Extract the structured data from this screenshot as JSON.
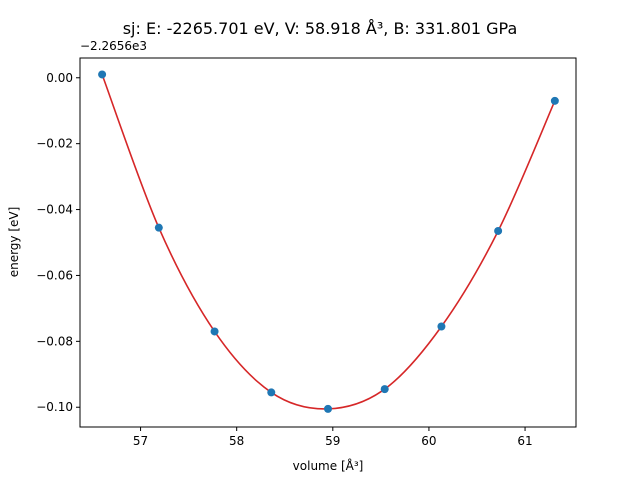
{
  "chart_data": {
    "type": "scatter",
    "title": "sj: E: -2265.701 eV, V: 58.918 Å³, B: 331.801 GPa",
    "xlabel": "volume [Å³]",
    "ylabel": "energy [eV]",
    "y_offset_label": "−2.2656e3",
    "xlim": [
      56.37,
      61.53
    ],
    "ylim": [
      -0.106,
      0.006
    ],
    "x_ticks": [
      57,
      58,
      59,
      60,
      61
    ],
    "x_tick_labels": [
      "57",
      "58",
      "59",
      "60",
      "61"
    ],
    "y_ticks": [
      0.0,
      -0.02,
      -0.04,
      -0.06,
      -0.08,
      -0.1
    ],
    "y_tick_labels": [
      "0.00",
      "−0.02",
      "−0.04",
      "−0.06",
      "−0.08",
      "−0.10"
    ],
    "grid": false,
    "series": [
      {
        "kind": "points",
        "color": "#1f77b4",
        "x": [
          56.6,
          57.19,
          57.77,
          58.36,
          58.95,
          59.54,
          60.13,
          60.72,
          61.31
        ],
        "y": [
          0.001,
          -0.0455,
          -0.077,
          -0.0955,
          -0.1005,
          -0.0945,
          -0.0755,
          -0.0465,
          -0.007
        ]
      },
      {
        "kind": "fit-curve",
        "color": "#d62728",
        "minimum": {
          "x": 58.918,
          "y": -0.1007
        },
        "x_range": [
          56.6,
          61.31
        ]
      }
    ]
  },
  "colors": {
    "points": "#1f77b4",
    "fit": "#d62728",
    "axes": "#000000"
  }
}
